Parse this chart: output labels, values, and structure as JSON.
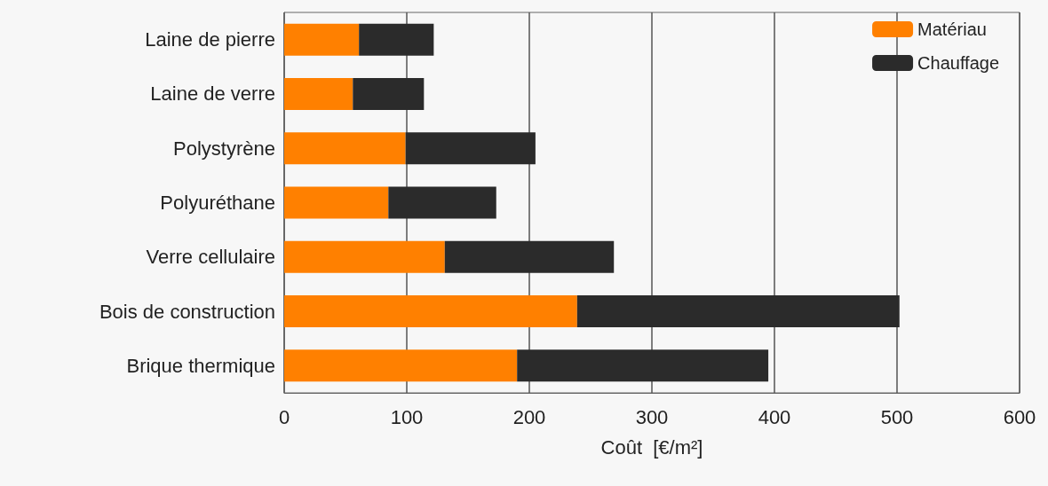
{
  "chart_data": {
    "type": "bar",
    "orientation": "horizontal",
    "stacked": true,
    "categories": [
      "Laine de pierre",
      "Laine de verre",
      "Polystyrène",
      "Polyuréthane",
      "Verre cellulaire",
      "Bois de construction",
      "Brique thermique"
    ],
    "series": [
      {
        "name": "Matériau",
        "color": "#ff8000",
        "values": [
          61,
          56,
          99,
          85,
          131,
          239,
          190
        ]
      },
      {
        "name": "Chauffage",
        "color": "#2b2b2b",
        "values": [
          61,
          58,
          106,
          88,
          138,
          263,
          205
        ]
      }
    ],
    "xlabel": "Coût  [€/m²]",
    "xlim": [
      0,
      600
    ],
    "xticks": [
      0,
      100,
      200,
      300,
      400,
      500,
      600
    ],
    "grid": "x",
    "legend": "top right"
  }
}
